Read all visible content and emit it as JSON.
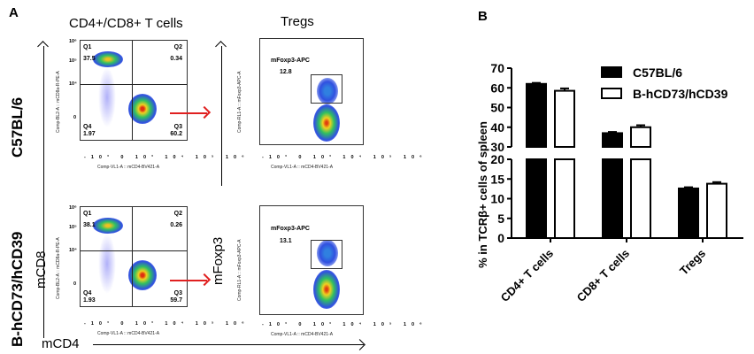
{
  "panel_a": {
    "letter": "A",
    "col_titles": [
      "CD4+/CD8+ T cells",
      "Tregs"
    ],
    "row_labels": [
      "C57BL/6",
      "B-hCD73/hCD39"
    ],
    "y_axis_big": "mCD8",
    "y_axis_big_treg": "mFoxp3",
    "x_axis_big": "mCD4",
    "facs_cd4cd8": {
      "xlabel": "Comp-VL1-A :: mCD4-BV421-A",
      "ylabel": "Comp-BL2-A :: mCD8a-R-PE-A",
      "x_ticks": [
        "-10³",
        "0",
        "10³",
        "10⁴",
        "10⁵",
        "10⁶"
      ],
      "y_ticks": [
        "10⁶",
        "10⁵",
        "10⁴",
        "0"
      ],
      "rows": [
        {
          "q1": {
            "name": "Q1",
            "value": "37.5"
          },
          "q2": {
            "name": "Q2",
            "value": "0.34"
          },
          "q3": {
            "name": "Q3",
            "value": "60.2"
          },
          "q4": {
            "name": "Q4",
            "value": "1.97"
          }
        },
        {
          "q1": {
            "name": "Q1",
            "value": "38.1"
          },
          "q2": {
            "name": "Q2",
            "value": "0.26"
          },
          "q3": {
            "name": "Q3",
            "value": "59.7"
          },
          "q4": {
            "name": "Q4",
            "value": "1.93"
          }
        }
      ]
    },
    "facs_treg": {
      "xlabel": "Comp-VL1-A :: mCD4-BV421-A",
      "ylabel": "Comp-RL1-A :: mFoxp3-APC-A",
      "x_ticks": [
        "-10³",
        "0",
        "10³",
        "10⁴",
        "10⁵",
        "10⁶"
      ],
      "y_ticks": [
        "10⁶",
        "10⁵",
        "10⁴",
        "10³",
        "0",
        "-10³"
      ],
      "gate_name": "mFoxp3-APC",
      "rows": [
        {
          "value": "12.8"
        },
        {
          "value": "13.1"
        }
      ]
    }
  },
  "panel_b": {
    "letter": "B"
  },
  "chart_data": {
    "type": "bar",
    "title": "",
    "xlabel": "",
    "ylabel": "% in TCRβ+ cells of spleen",
    "categories": [
      "CD4+ T cells",
      "CD8+ T cells",
      "Tregs"
    ],
    "series": [
      {
        "name": "C57BL/6",
        "fill": "#000000",
        "values": [
          62,
          37,
          12.6
        ],
        "errors": [
          0.5,
          0.6,
          0.3
        ]
      },
      {
        "name": "B-hCD73/hCD39",
        "fill": "#ffffff",
        "values": [
          58.5,
          40,
          13.8
        ],
        "errors": [
          1.2,
          1.0,
          0.4
        ]
      }
    ],
    "y_axis_break": true,
    "ylim_lower": [
      0,
      20
    ],
    "yticks_lower": [
      "0",
      "5",
      "10",
      "15",
      "20"
    ],
    "ylim_upper": [
      30,
      70
    ],
    "yticks_upper": [
      "30",
      "40",
      "50",
      "60",
      "70"
    ],
    "legend": "top-right",
    "grid": false
  }
}
